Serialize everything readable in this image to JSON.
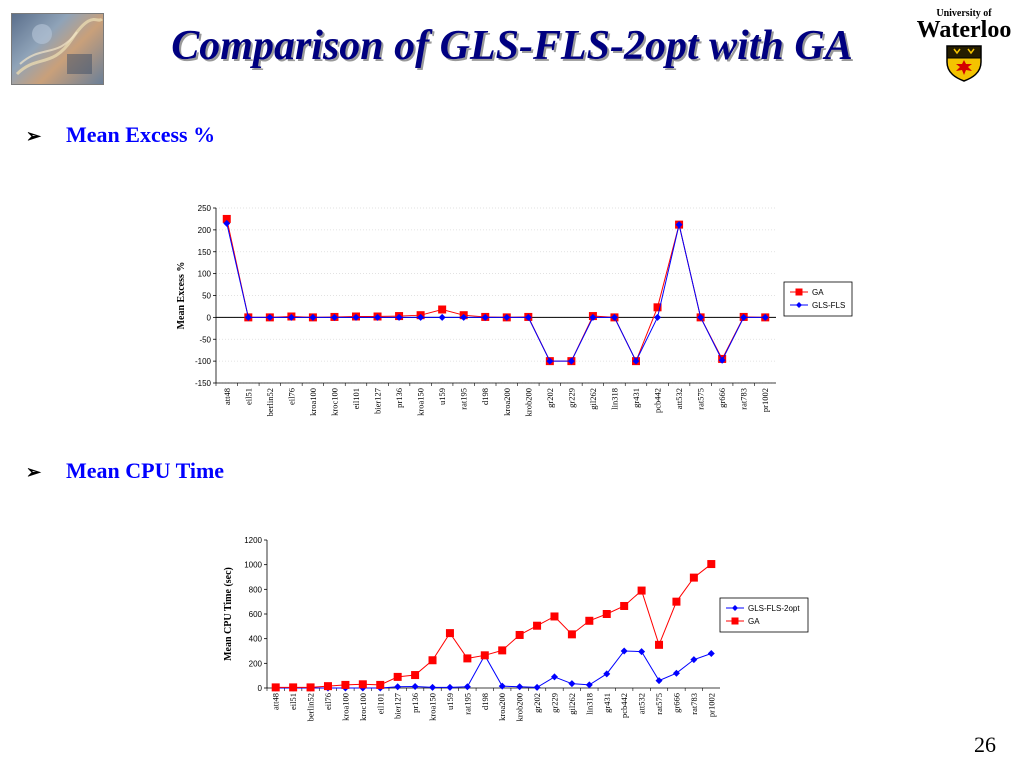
{
  "slide": {
    "title": "Comparison of GLS-FLS-2opt with GA",
    "university_small": "University of",
    "university_big": "Waterloo",
    "bullet1": "Mean Excess %",
    "bullet2": "Mean CPU Time",
    "page_number": "26",
    "bullet_icon": "arrow-bullet-icon"
  },
  "chart_data": [
    {
      "type": "line",
      "title": "",
      "ylabel": "Mean Excess %",
      "xlabel": "",
      "ylim": [
        -150,
        250
      ],
      "yticks": [
        -150,
        -100,
        -50,
        0,
        50,
        100,
        150,
        200,
        250
      ],
      "grid": true,
      "legend_position": "right",
      "categories": [
        "att48",
        "eil51",
        "berlin52",
        "eil76",
        "kroa100",
        "kroc100",
        "eil101",
        "bier127",
        "pr136",
        "kroa150",
        "u159",
        "rat195",
        "d198",
        "kroa200",
        "krob200",
        "gr202",
        "gr229",
        "gil262",
        "lin318",
        "gr431",
        "pcb442",
        "att532",
        "rat575",
        "gr666",
        "rat783",
        "pr1002"
      ],
      "series": [
        {
          "name": "GA",
          "color": "#ff0000",
          "marker": "square",
          "values": [
            225,
            0,
            0,
            2,
            0,
            1,
            2,
            2,
            3,
            5,
            18,
            5,
            1,
            0,
            1,
            -100,
            -100,
            3,
            0,
            -100,
            23,
            212,
            0,
            -95,
            1,
            0
          ]
        },
        {
          "name": "GLS-FLS",
          "color": "#0000ff",
          "marker": "diamond",
          "values": [
            215,
            0,
            0,
            0,
            0,
            0,
            0,
            0,
            0,
            0,
            0,
            0,
            0,
            0,
            0,
            -100,
            -100,
            0,
            0,
            -100,
            0,
            212,
            0,
            -98,
            0,
            0
          ]
        }
      ]
    },
    {
      "type": "line",
      "title": "",
      "ylabel": "Mean CPU Time (sec)",
      "xlabel": "",
      "ylim": [
        0,
        1200
      ],
      "yticks": [
        0,
        200,
        400,
        600,
        800,
        1000,
        1200
      ],
      "grid": false,
      "legend_position": "right",
      "categories": [
        "att48",
        "eil51",
        "berlin52",
        "eil76",
        "kroa100",
        "kroc100",
        "eil101",
        "bier127",
        "pr136",
        "kroa150",
        "u159",
        "rat195",
        "d198",
        "kroa200",
        "krob200",
        "gr202",
        "gr229",
        "gil262",
        "lin318",
        "gr431",
        "pcb442",
        "att532",
        "rat575",
        "gr666",
        "rat783",
        "pr1002"
      ],
      "series": [
        {
          "name": "GLS-FLS-2opt",
          "color": "#0000ff",
          "marker": "diamond",
          "values": [
            0,
            0,
            0,
            0,
            0,
            0,
            0,
            10,
            12,
            5,
            5,
            10,
            265,
            15,
            10,
            5,
            90,
            35,
            25,
            115,
            300,
            295,
            60,
            120,
            230,
            280
          ]
        },
        {
          "name": "GA",
          "color": "#ff0000",
          "marker": "square",
          "values": [
            5,
            5,
            5,
            15,
            25,
            30,
            25,
            90,
            105,
            225,
            445,
            240,
            265,
            305,
            430,
            505,
            580,
            435,
            545,
            600,
            665,
            790,
            350,
            700,
            895,
            1005
          ]
        }
      ]
    }
  ]
}
